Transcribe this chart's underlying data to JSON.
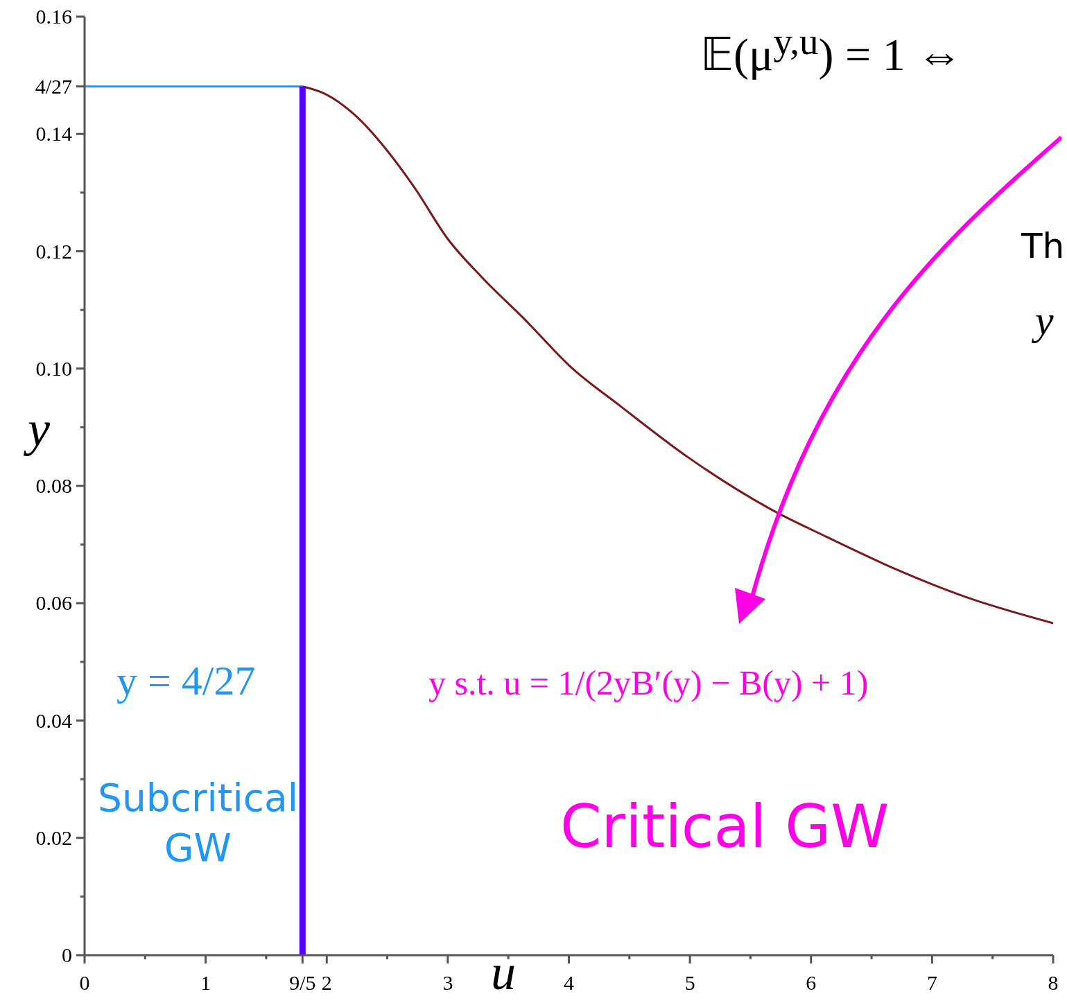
{
  "chart_data": {
    "type": "line",
    "title": "𝔼(μ$^{y,u}$) = 1 ⇔",
    "xlabel": "u",
    "ylabel": "y",
    "annotations": [
      "y = 4/27",
      "Subcritical GW",
      "y s.t. u = 1/(2yB′(y) − B(y) + 1)",
      "Critical GW",
      "Th",
      "y"
    ],
    "series": [
      {
        "color": "#7b1a1a",
        "x": [
          1.8,
          1.98,
          2.26,
          2.49,
          2.72,
          3.0,
          3.28,
          3.63,
          4.02,
          4.42,
          4.99,
          5.67,
          6.13,
          6.69,
          7.26,
          8
        ],
        "values": [
          0.1481,
          0.1469,
          0.1427,
          0.1374,
          0.131,
          0.1221,
          0.1156,
          0.1085,
          0.1002,
          0.0937,
          0.0848,
          0.076,
          0.0713,
          0.0659,
          0.0612,
          0.0566
        ]
      },
      {
        "color": "#2196f3",
        "x": [
          0,
          1.8
        ],
        "values": [
          0.1481,
          0.1481
        ]
      },
      {
        "color": "#5500ff",
        "x": [
          1.8,
          1.8
        ],
        "values": [
          0,
          0.1481
        ]
      }
    ],
    "xlim": [
      0,
      8
    ],
    "xticks": [
      0,
      {
        "value": 0.5,
        "label": null
      },
      1,
      {
        "value": 1.5,
        "label": null
      },
      {
        "value": 1.8,
        "label": "9/5"
      },
      2,
      {
        "value": 2.5,
        "label": null
      },
      3,
      {
        "value": 3.5,
        "label": null
      },
      4,
      {
        "value": 4.5,
        "label": null
      },
      5,
      {
        "value": 5.5,
        "label": null
      },
      6,
      {
        "value": 6.5,
        "label": null
      },
      7,
      {
        "value": 7.5,
        "label": null
      },
      8
    ],
    "ylim": [
      0,
      0.16
    ],
    "yticks": [
      0,
      {
        "value": 0.01,
        "label": null
      },
      0.02,
      {
        "value": 0.03,
        "label": null
      },
      0.04,
      {
        "value": 0.05,
        "label": null
      },
      0.06,
      {
        "value": 0.07,
        "label": null
      },
      0.08,
      {
        "value": 0.09,
        "label": null
      },
      {
        "value": 0.1,
        "label": "0.10"
      },
      {
        "value": 0.11,
        "label": null
      },
      0.12,
      {
        "value": 0.13,
        "label": null
      },
      0.14,
      {
        "value": 0.1481,
        "label": "4/27"
      },
      0.16
    ],
    "grid": false,
    "marker": "none",
    "line_style": "solid"
  }
}
